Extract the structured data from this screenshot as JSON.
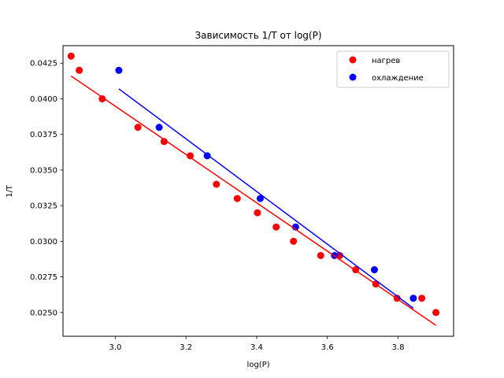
{
  "chart_data": {
    "type": "scatter",
    "title": "Зависимость 1/T от log(P)",
    "xlabel": "log(P)",
    "ylabel": "1/T",
    "xlim": [
      2.852,
      3.957
    ],
    "ylim": [
      0.02333,
      0.04373
    ],
    "x_ticks": [
      "3.0",
      "3.2",
      "3.4",
      "3.6",
      "3.8"
    ],
    "y_ticks": [
      "0.0250",
      "0.0275",
      "0.0300",
      "0.0325",
      "0.0350",
      "0.0375",
      "0.0400",
      "0.0425"
    ],
    "grid": false,
    "legend_position": "top-right",
    "series": [
      {
        "name": "нагрев",
        "color": "#ff0000",
        "points": [
          [
            2.875,
            0.043
          ],
          [
            2.898,
            0.042
          ],
          [
            2.963,
            0.04
          ],
          [
            3.064,
            0.038
          ],
          [
            3.138,
            0.037
          ],
          [
            3.212,
            0.036
          ],
          [
            3.286,
            0.034
          ],
          [
            3.345,
            0.033
          ],
          [
            3.402,
            0.032
          ],
          [
            3.455,
            0.031
          ],
          [
            3.504,
            0.03
          ],
          [
            3.581,
            0.029
          ],
          [
            3.635,
            0.029
          ],
          [
            3.68,
            0.028
          ],
          [
            3.737,
            0.027
          ],
          [
            3.797,
            0.026
          ],
          [
            3.867,
            0.026
          ],
          [
            3.907,
            0.025
          ]
        ],
        "fit": [
          [
            2.875,
            0.0416
          ],
          [
            3.907,
            0.0241
          ]
        ]
      },
      {
        "name": "охлаждение",
        "color": "#0000ff",
        "points": [
          [
            3.01,
            0.042
          ],
          [
            3.124,
            0.038
          ],
          [
            3.26,
            0.036
          ],
          [
            3.41,
            0.033
          ],
          [
            3.51,
            0.031
          ],
          [
            3.62,
            0.029
          ],
          [
            3.733,
            0.028
          ],
          [
            3.843,
            0.026
          ]
        ],
        "fit": [
          [
            3.01,
            0.0407
          ],
          [
            3.843,
            0.0253
          ]
        ]
      }
    ]
  }
}
